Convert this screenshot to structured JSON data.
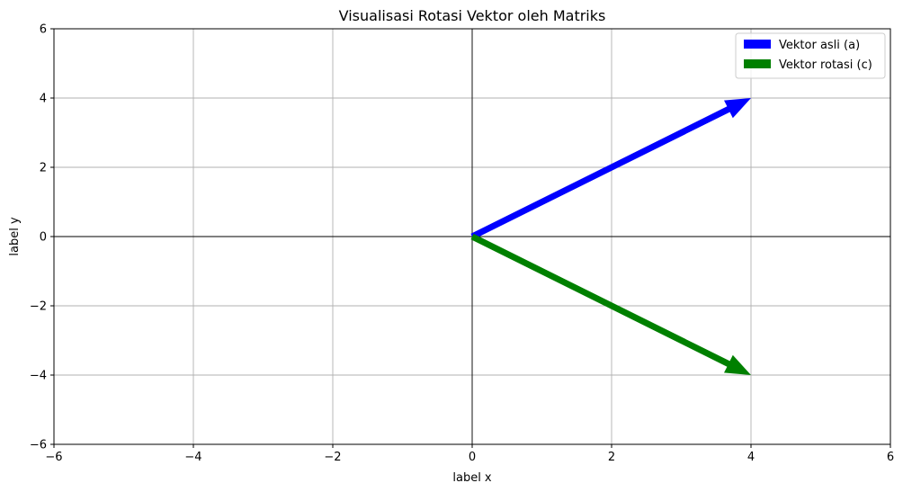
{
  "chart_data": {
    "type": "quiver",
    "title": "Visualisasi Rotasi Vektor oleh Matriks",
    "xlabel": "label x",
    "ylabel": "label y",
    "xlim": [
      -6,
      6
    ],
    "ylim": [
      -6,
      6
    ],
    "xticks": [
      -6,
      -4,
      -2,
      0,
      2,
      4,
      6
    ],
    "yticks": [
      -6,
      -4,
      -2,
      0,
      2,
      4,
      6
    ],
    "xtick_labels": [
      "−6",
      "−4",
      "−2",
      "0",
      "2",
      "4",
      "6"
    ],
    "ytick_labels": [
      "−6",
      "−4",
      "−2",
      "0",
      "2",
      "4",
      "6"
    ],
    "grid": true,
    "legend_position": "top-right",
    "series": [
      {
        "name": "Vektor asli (a)",
        "color": "#0000ff",
        "origin": [
          0,
          0
        ],
        "vector": [
          4,
          4
        ]
      },
      {
        "name": "Vektor rotasi (c)",
        "color": "#008000",
        "origin": [
          0,
          0
        ],
        "vector": [
          4,
          -4
        ]
      }
    ]
  }
}
